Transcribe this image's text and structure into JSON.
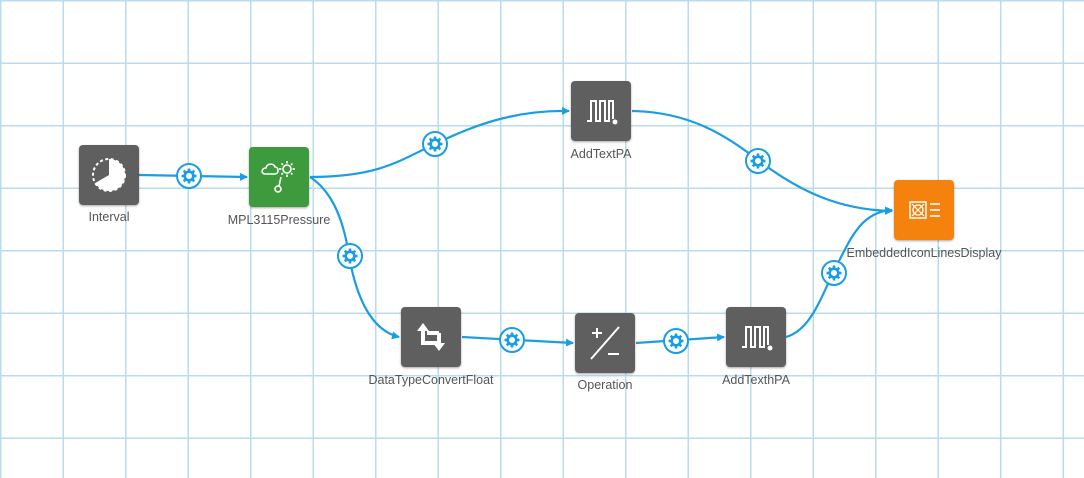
{
  "nodes": {
    "interval": {
      "label": "Interval",
      "icon": "timer-icon",
      "color": "#5f5f5f"
    },
    "mpl3115": {
      "label": "MPL3115Pressure",
      "icon": "cloud-gear-sensor-icon",
      "color": "#3d9a3d"
    },
    "addtextpa": {
      "label": "AddTextPA",
      "icon": "waveform-icon",
      "color": "#5f5f5f"
    },
    "datatype": {
      "label": "DataTypeConvertFloat",
      "icon": "convert-arrows-icon",
      "color": "#5f5f5f"
    },
    "operation": {
      "label": "Operation",
      "icon": "plus-minus-icon",
      "color": "#5f5f5f"
    },
    "addtexthpa": {
      "label": "AddTexthPA",
      "icon": "waveform-icon",
      "color": "#5f5f5f"
    },
    "display": {
      "label": "EmbeddedIconLinesDisplay",
      "icon": "display-lines-icon",
      "color": "#f5820c"
    }
  },
  "connector_icon": "gear-icon",
  "wire_color": "#1a9ee3",
  "grid_color": "#b8dbee"
}
